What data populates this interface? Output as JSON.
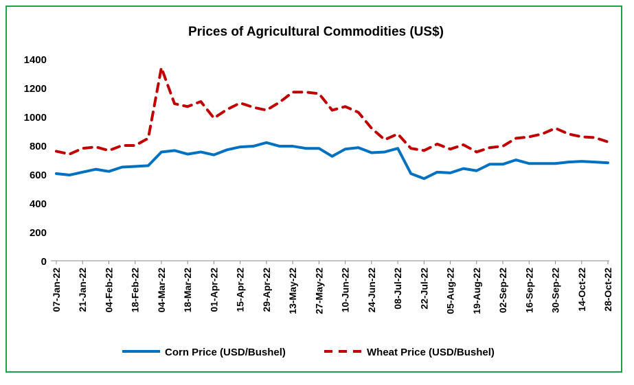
{
  "chart_data": {
    "type": "line",
    "title": "Prices of Agricultural Commodities (US$)",
    "xlabel": "",
    "ylabel": "",
    "ylim": [
      0,
      1400
    ],
    "yticks": [
      0,
      200,
      400,
      600,
      800,
      1000,
      1200,
      1400
    ],
    "grid": false,
    "legend": "bottom",
    "x": [
      "07-Jan-22",
      "14-Jan-22",
      "21-Jan-22",
      "28-Jan-22",
      "04-Feb-22",
      "11-Feb-22",
      "18-Feb-22",
      "25-Feb-22",
      "04-Mar-22",
      "11-Mar-22",
      "18-Mar-22",
      "25-Mar-22",
      "01-Apr-22",
      "08-Apr-22",
      "15-Apr-22",
      "22-Apr-22",
      "29-Apr-22",
      "06-May-22",
      "13-May-22",
      "20-May-22",
      "27-May-22",
      "03-Jun-22",
      "10-Jun-22",
      "17-Jun-22",
      "24-Jun-22",
      "01-Jul-22",
      "08-Jul-22",
      "15-Jul-22",
      "22-Jul-22",
      "29-Jul-22",
      "05-Aug-22",
      "12-Aug-22",
      "19-Aug-22",
      "26-Aug-22",
      "02-Sep-22",
      "09-Sep-22",
      "16-Sep-22",
      "23-Sep-22",
      "30-Sep-22",
      "07-Oct-22",
      "14-Oct-22",
      "21-Oct-22",
      "28-Oct-22"
    ],
    "xtick_labels": [
      "07-Jan-22",
      "21-Jan-22",
      "04-Feb-22",
      "18-Feb-22",
      "04-Mar-22",
      "18-Mar-22",
      "01-Apr-22",
      "15-Apr-22",
      "29-Apr-22",
      "13-May-22",
      "27-May-22",
      "10-Jun-22",
      "24-Jun-22",
      "08-Jul-22",
      "22-Jul-22",
      "05-Aug-22",
      "19-Aug-22",
      "02-Sep-22",
      "16-Sep-22",
      "30-Sep-22",
      "14-Oct-22",
      "28-Oct-22"
    ],
    "series": [
      {
        "name": "Corn Price (USD/Bushel)",
        "color": "#0070c0",
        "style": "solid",
        "values": [
          605,
          595,
          615,
          635,
          620,
          650,
          655,
          660,
          755,
          765,
          740,
          755,
          735,
          770,
          790,
          795,
          820,
          795,
          795,
          780,
          780,
          725,
          775,
          785,
          750,
          755,
          780,
          605,
          570,
          615,
          610,
          640,
          625,
          670,
          670,
          700,
          675,
          675,
          675,
          685,
          690,
          685,
          680
        ]
      },
      {
        "name": "Wheat Price (USD/Bushel)",
        "color": "#c00000",
        "style": "dashed",
        "values": [
          760,
          740,
          780,
          790,
          765,
          800,
          800,
          850,
          1340,
          1090,
          1070,
          1105,
          990,
          1050,
          1095,
          1065,
          1045,
          1100,
          1170,
          1170,
          1160,
          1045,
          1070,
          1030,
          920,
          840,
          880,
          780,
          765,
          810,
          775,
          805,
          755,
          785,
          795,
          850,
          860,
          880,
          920,
          880,
          860,
          855,
          825
        ]
      }
    ]
  }
}
